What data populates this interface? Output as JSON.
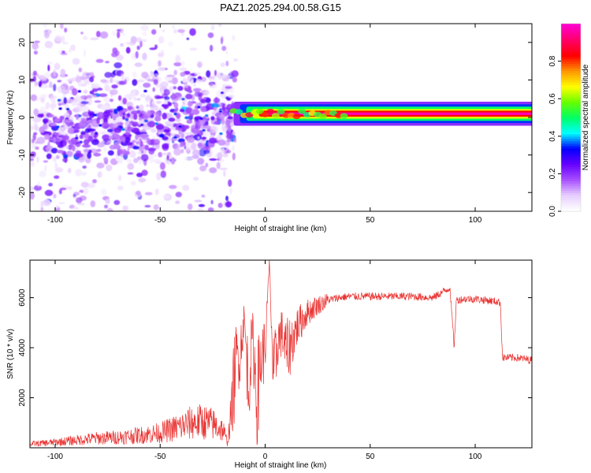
{
  "title": "PAZ1.2025.294.00.58.G15",
  "chart_data": [
    {
      "type": "heatmap",
      "name": "spectrogram",
      "xlabel": "Height of straight line (km)",
      "ylabel": "Frequency (Hz)",
      "xlim": [
        -112,
        127
      ],
      "ylim": [
        -25,
        25
      ],
      "xticks": [
        -100,
        -50,
        0,
        50,
        100
      ],
      "yticks": [
        -20,
        -10,
        0,
        10,
        20
      ],
      "xtick_labels": [
        "-100",
        "-50",
        "0",
        "50",
        "100"
      ],
      "ytick_labels": [
        "-20",
        "-10",
        "0",
        "10",
        "20"
      ],
      "colorbar": {
        "label": "Normalized spectral amplitude",
        "range": [
          0,
          1
        ],
        "ticks": [
          0.0,
          0.2,
          0.4,
          0.6,
          0.8
        ],
        "tick_labels": [
          "0.0",
          "0.2",
          "0.4",
          "0.6",
          "0.8"
        ],
        "colors": [
          "#ffffff",
          "#e6ccff",
          "#a64dff",
          "#6600ff",
          "#0000ff",
          "#00ffff",
          "#00ff66",
          "#66ff00",
          "#ffff00",
          "#ff9900",
          "#ff0000",
          "#ff0066",
          "#ff00cc"
        ]
      },
      "features": {
        "noise_region_height_km": [
          -112,
          -18
        ],
        "noise_frequency_hz": [
          -25,
          25
        ],
        "core_cluster_frequency_hz": [
          -10,
          10
        ],
        "tone_start_height_km": -15,
        "tone_frequency_hz": 1,
        "tone_amplitude": 1.0
      }
    },
    {
      "type": "line",
      "name": "snr",
      "xlabel": "Height of straight line (km)",
      "ylabel": "SNR (10 * v/v)",
      "xlim": [
        -112,
        127
      ],
      "ylim": [
        0,
        7500
      ],
      "xticks": [
        -100,
        -50,
        0,
        50,
        100
      ],
      "yticks": [
        2000,
        4000,
        6000
      ],
      "xtick_labels": [
        "-100",
        "-50",
        "0",
        "50",
        "100"
      ],
      "ytick_labels": [
        "2000",
        "4000",
        "6000"
      ],
      "color": "#e8312f",
      "series": [
        {
          "name": "SNR",
          "x": [
            -112,
            -100,
            -90,
            -80,
            -70,
            -60,
            -50,
            -40,
            -35,
            -30,
            -25,
            -20,
            -18,
            -16,
            -14,
            -12,
            -10,
            -8,
            -6,
            -4,
            -2,
            0,
            2,
            4,
            6,
            8,
            10,
            12,
            15,
            20,
            25,
            30,
            35,
            40,
            45,
            50,
            60,
            70,
            80,
            88,
            89,
            90,
            91,
            95,
            100,
            105,
            110,
            112,
            113,
            115,
            120,
            127
          ],
          "y": [
            150,
            220,
            300,
            380,
            420,
            500,
            600,
            850,
            1000,
            1050,
            950,
            700,
            200,
            1500,
            3500,
            3800,
            5200,
            2500,
            4500,
            2000,
            3500,
            4000,
            7400,
            2400,
            4300,
            4600,
            3800,
            4100,
            4800,
            5400,
            5700,
            5900,
            6000,
            6050,
            6050,
            6050,
            6050,
            6050,
            6000,
            6400,
            5200,
            4000,
            5900,
            5950,
            5950,
            5900,
            5850,
            5800,
            3600,
            3600,
            3600,
            3500
          ]
        }
      ]
    }
  ]
}
